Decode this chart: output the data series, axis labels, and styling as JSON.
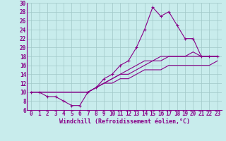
{
  "xlabel": "Windchill (Refroidissement éolien,°C)",
  "xlim_min": -0.5,
  "xlim_max": 23.5,
  "ylim_min": 6,
  "ylim_max": 30,
  "xticks": [
    0,
    1,
    2,
    3,
    4,
    5,
    6,
    7,
    8,
    9,
    10,
    11,
    12,
    13,
    14,
    15,
    16,
    17,
    18,
    19,
    20,
    21,
    22,
    23
  ],
  "yticks": [
    6,
    8,
    10,
    12,
    14,
    16,
    18,
    20,
    22,
    24,
    26,
    28,
    30
  ],
  "bg_color": "#c8ecec",
  "line_color": "#880088",
  "grid_color": "#a0c8c8",
  "line1_x": [
    0,
    1,
    2,
    3,
    4,
    5,
    6,
    7,
    8,
    9,
    10,
    11,
    12,
    13,
    14,
    15,
    16,
    17,
    18,
    19,
    20,
    21,
    22,
    23
  ],
  "line1_y": [
    10,
    10,
    9,
    9,
    8,
    7,
    7,
    10,
    11,
    13,
    14,
    16,
    17,
    20,
    24,
    29,
    27,
    28,
    25,
    22,
    22,
    18,
    18,
    18
  ],
  "line2_x": [
    0,
    1,
    2,
    3,
    4,
    5,
    6,
    7,
    8,
    9,
    10,
    11,
    12,
    13,
    14,
    15,
    16,
    17,
    18,
    19,
    20,
    21,
    22,
    23
  ],
  "line2_y": [
    10,
    10,
    10,
    10,
    10,
    10,
    10,
    10,
    11,
    12,
    13,
    14,
    14,
    15,
    16,
    17,
    17,
    18,
    18,
    18,
    18,
    18,
    18,
    18
  ],
  "line3_x": [
    0,
    1,
    2,
    3,
    4,
    5,
    6,
    7,
    8,
    9,
    10,
    11,
    12,
    13,
    14,
    15,
    16,
    17,
    18,
    19,
    20,
    21,
    22,
    23
  ],
  "line3_y": [
    10,
    10,
    10,
    10,
    10,
    10,
    10,
    10,
    11,
    12,
    13,
    14,
    15,
    16,
    17,
    17,
    18,
    18,
    18,
    18,
    19,
    18,
    18,
    18
  ],
  "line4_x": [
    0,
    1,
    2,
    3,
    4,
    5,
    6,
    7,
    8,
    9,
    10,
    11,
    12,
    13,
    14,
    15,
    16,
    17,
    18,
    19,
    20,
    21,
    22,
    23
  ],
  "line4_y": [
    10,
    10,
    10,
    10,
    10,
    10,
    10,
    10,
    11,
    12,
    12,
    13,
    13,
    14,
    15,
    15,
    15,
    16,
    16,
    16,
    16,
    16,
    16,
    17
  ],
  "tick_fontsize": 5.5,
  "xlabel_fontsize": 6.0
}
